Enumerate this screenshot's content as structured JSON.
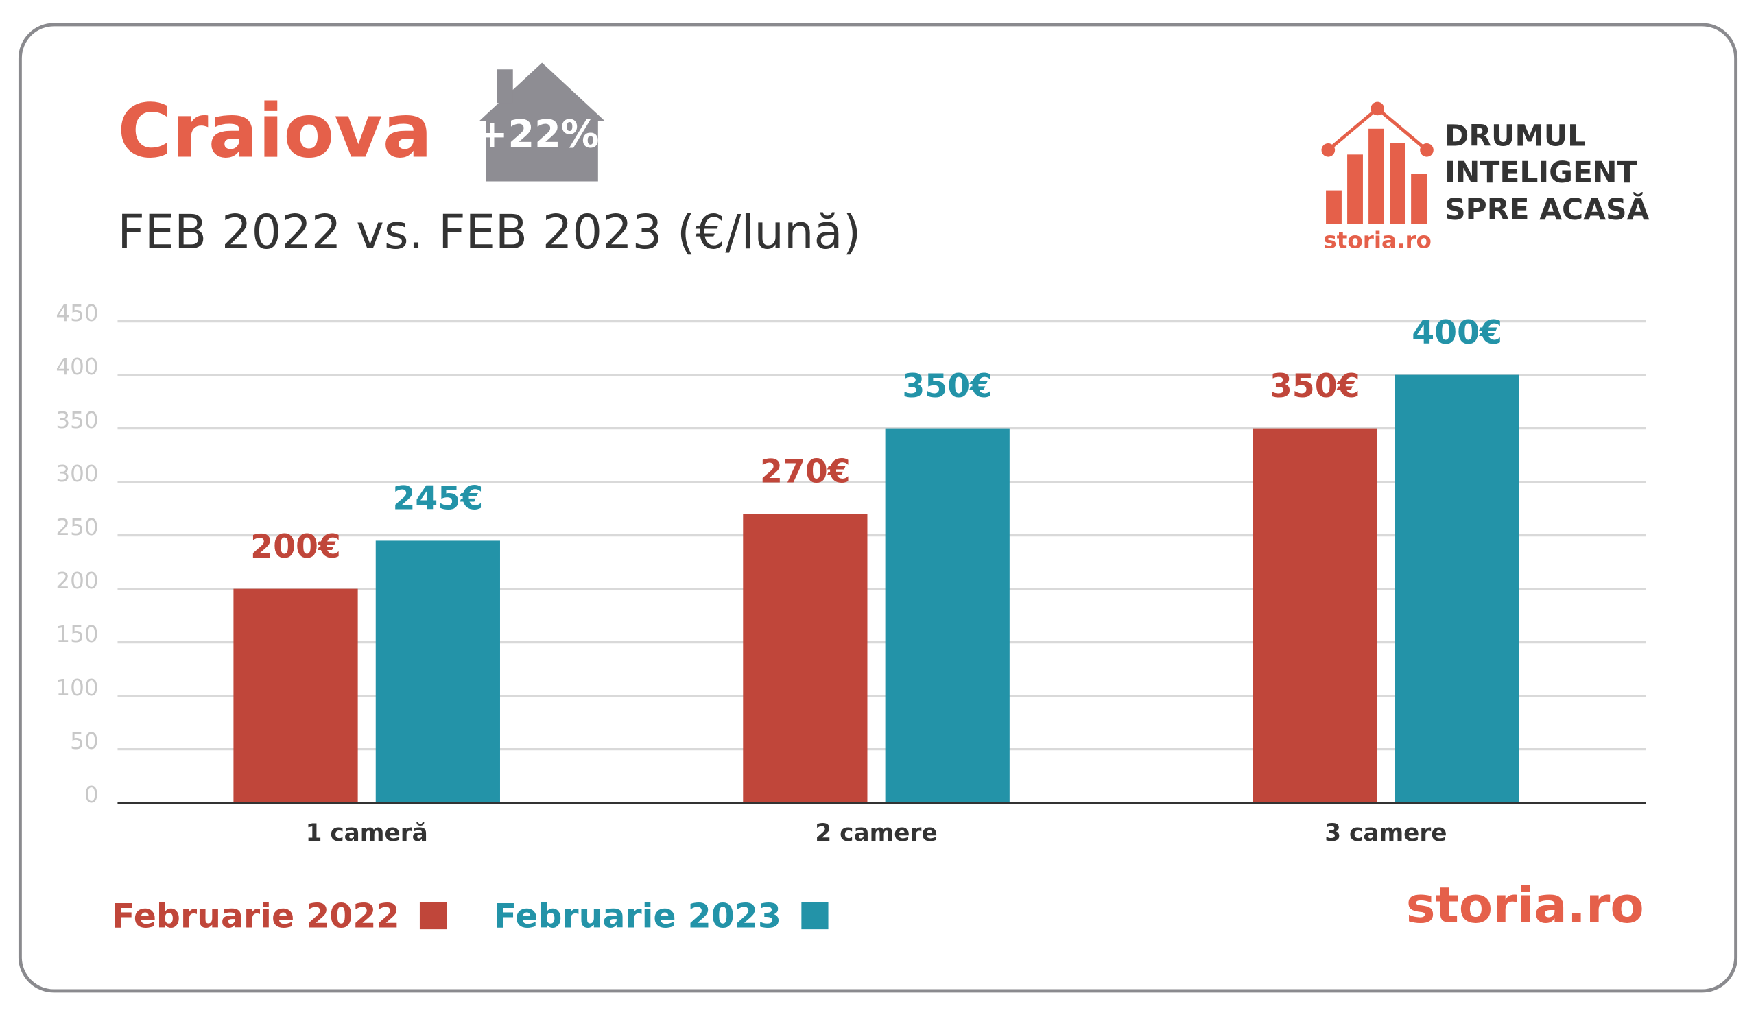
{
  "chart_data": {
    "type": "bar",
    "title": "Craiova",
    "badge": "+22%",
    "subtitle": "FEB 2022 vs. FEB 2023 (€/lună)",
    "brand": {
      "lines": [
        "DRUMUL",
        "INTELIGENT",
        "SPRE ACASĂ"
      ],
      "logo_text": "storia.ro",
      "footer_logo": "storia.ro"
    },
    "categories": [
      "1 cameră",
      "2 camere",
      "3 camere"
    ],
    "series": [
      {
        "name": "Februarie 2022",
        "color": "#c0463a",
        "values": [
          200,
          270,
          350
        ],
        "value_labels": [
          "200€",
          "270€",
          "350€"
        ]
      },
      {
        "name": "Februarie 2023",
        "color": "#2393a8",
        "values": [
          245,
          350,
          400
        ],
        "value_labels": [
          "245€",
          "350€",
          "400€"
        ]
      }
    ],
    "ylim": [
      0,
      450
    ],
    "yticks": [
      0,
      50,
      100,
      150,
      200,
      250,
      300,
      350,
      400,
      450
    ],
    "grid": true
  }
}
